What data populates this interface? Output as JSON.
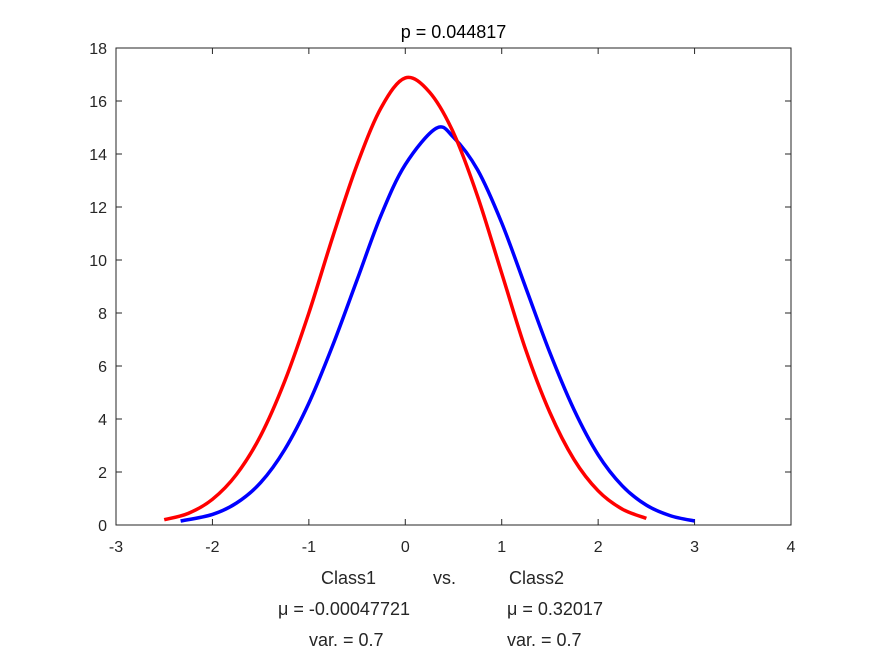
{
  "chart_data": {
    "type": "line",
    "title": "p = 0.044817",
    "xlim": [
      -3,
      4
    ],
    "ylim": [
      0,
      18
    ],
    "xticks": [
      -3,
      -2,
      -1,
      0,
      1,
      2,
      3,
      4
    ],
    "yticks": [
      0,
      2,
      4,
      6,
      8,
      10,
      12,
      14,
      16,
      18
    ],
    "grid": false,
    "legend": "none",
    "series": [
      {
        "name": "Class1",
        "color": "#ff0000",
        "x": [
          -2.5,
          -2.25,
          -2.0,
          -1.75,
          -1.5,
          -1.25,
          -1.0,
          -0.75,
          -0.5,
          -0.25,
          0.0,
          0.25,
          0.5,
          0.75,
          1.0,
          1.25,
          1.5,
          1.75,
          2.0,
          2.25,
          2.5
        ],
        "y": [
          0.2,
          0.44,
          0.97,
          1.91,
          3.37,
          5.43,
          8.0,
          10.9,
          13.6,
          15.75,
          16.87,
          16.34,
          14.8,
          12.4,
          9.5,
          6.6,
          4.24,
          2.47,
          1.29,
          0.6,
          0.25
        ]
      },
      {
        "name": "Class2",
        "color": "#0000ff",
        "x": [
          -2.33,
          -2.0,
          -1.75,
          -1.5,
          -1.25,
          -1.0,
          -0.75,
          -0.5,
          -0.25,
          0.0,
          0.32,
          0.5,
          0.75,
          1.0,
          1.25,
          1.5,
          1.75,
          2.0,
          2.25,
          2.5,
          2.75,
          3.0
        ],
        "y": [
          0.15,
          0.4,
          0.83,
          1.6,
          2.85,
          4.6,
          6.8,
          9.25,
          11.7,
          13.6,
          14.97,
          14.63,
          13.4,
          11.4,
          8.95,
          6.5,
          4.35,
          2.65,
          1.48,
          0.75,
          0.35,
          0.15
        ]
      }
    ],
    "xlabel_lines": [
      {
        "left": "Class1",
        "middle": "vs.",
        "right": "Class2"
      },
      {
        "left": "μ = -0.00047721",
        "right": "μ = 0.32017"
      },
      {
        "left": "var. = 0.7",
        "right": "var. = 0.7"
      }
    ]
  }
}
